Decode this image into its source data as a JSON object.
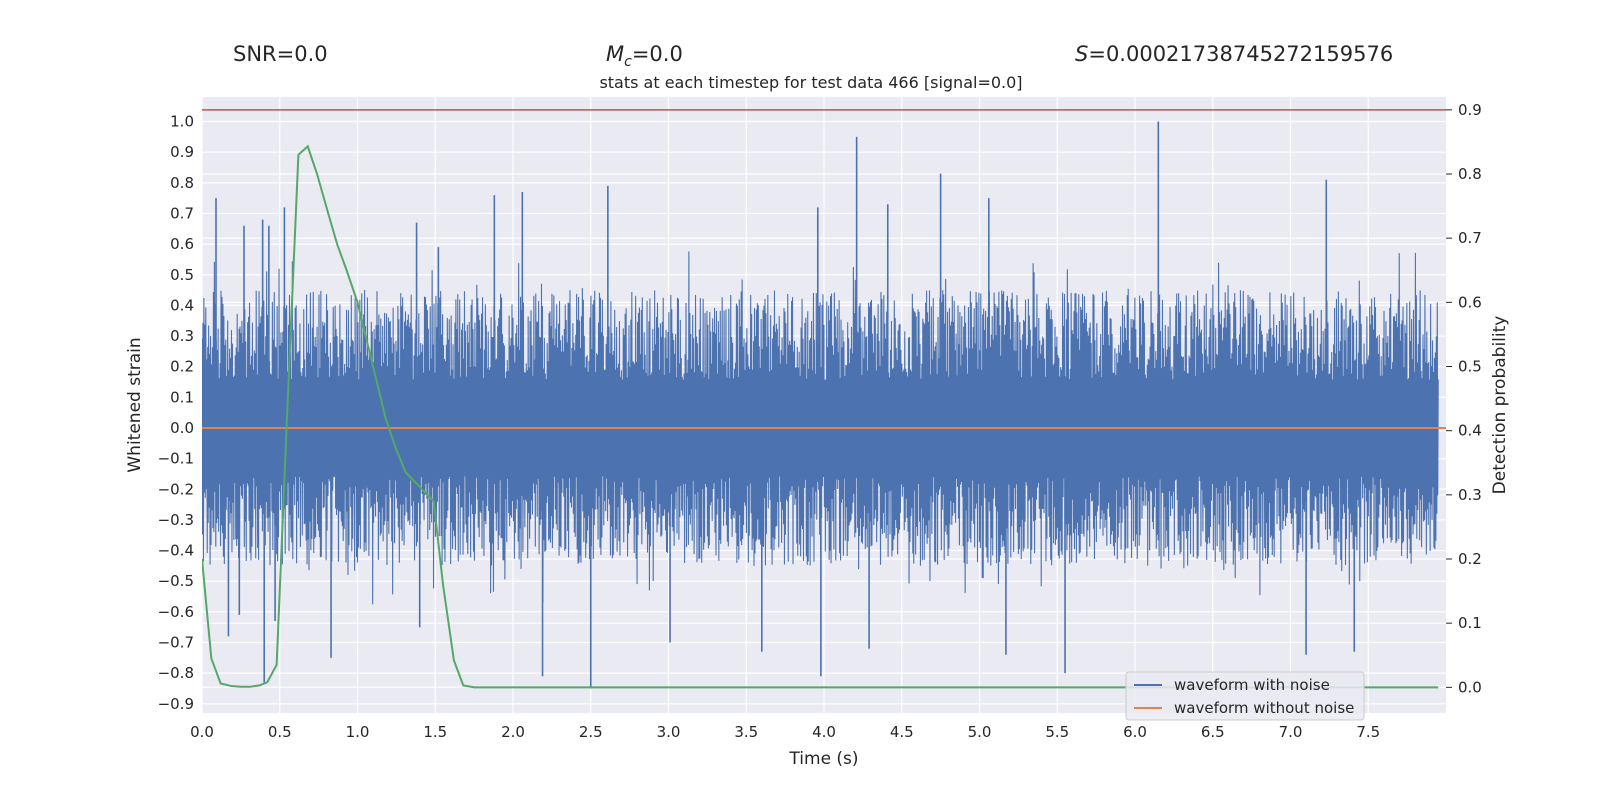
{
  "header": {
    "snr": "SNR=0.0",
    "mc_symbol": "M",
    "mc_subscript": "c",
    "mc_value": "=0.0",
    "s_symbol": "S",
    "s_value": "=0.00021738745272159576"
  },
  "chart_data": {
    "type": "line",
    "title": "stats at each timestep for test data 466 [signal=0.0]",
    "xlabel": "Time (s)",
    "ylabel": "Whitened strain",
    "y2label": "Detection probability",
    "xlim": [
      0.0,
      8.0
    ],
    "ylim": [
      -0.93,
      1.08
    ],
    "y2lim": [
      -0.04,
      0.92
    ],
    "x_ticks": [
      "0.0",
      "0.5",
      "1.0",
      "1.5",
      "2.0",
      "2.5",
      "3.0",
      "3.5",
      "4.0",
      "4.5",
      "5.0",
      "5.5",
      "6.0",
      "6.5",
      "7.0",
      "7.5"
    ],
    "y_ticks": [
      "1.0",
      "0.9",
      "0.8",
      "0.7",
      "0.6",
      "0.5",
      "0.4",
      "0.3",
      "0.2",
      "0.1",
      "0.0",
      "−0.1",
      "−0.2",
      "−0.3",
      "−0.4",
      "−0.5",
      "−0.6",
      "−0.7",
      "−0.8",
      "−0.9"
    ],
    "y2_ticks": [
      "0.9",
      "0.8",
      "0.7",
      "0.6",
      "0.5",
      "0.4",
      "0.3",
      "0.2",
      "0.1",
      "0.0"
    ],
    "grid": true,
    "legend_position": "lower-right",
    "background": "#eaeaf2",
    "series": [
      {
        "name": "waveform with noise",
        "color": "#4c72b0",
        "axis": "left",
        "kind": "noise",
        "typical_range": [
          -0.45,
          0.45
        ],
        "peaks": [
          {
            "x": 0.09,
            "y": 0.75
          },
          {
            "x": 0.27,
            "y": 0.66
          },
          {
            "x": 0.39,
            "y": 0.68
          },
          {
            "x": 0.43,
            "y": 0.66
          },
          {
            "x": 0.53,
            "y": 0.72
          },
          {
            "x": 1.38,
            "y": 0.67
          },
          {
            "x": 1.52,
            "y": 0.59
          },
          {
            "x": 1.88,
            "y": 0.76
          },
          {
            "x": 2.06,
            "y": 0.77
          },
          {
            "x": 2.61,
            "y": 0.79
          },
          {
            "x": 3.96,
            "y": 0.72
          },
          {
            "x": 4.21,
            "y": 0.95
          },
          {
            "x": 4.41,
            "y": 0.73
          },
          {
            "x": 4.75,
            "y": 0.83
          },
          {
            "x": 5.06,
            "y": 0.75
          },
          {
            "x": 6.15,
            "y": 1.0
          },
          {
            "x": 7.23,
            "y": 0.81
          },
          {
            "x": 0.17,
            "y": -0.68
          },
          {
            "x": 0.24,
            "y": -0.61
          },
          {
            "x": 0.4,
            "y": -0.83
          },
          {
            "x": 0.47,
            "y": -0.63
          },
          {
            "x": 0.83,
            "y": -0.75
          },
          {
            "x": 1.4,
            "y": -0.65
          },
          {
            "x": 2.19,
            "y": -0.81
          },
          {
            "x": 2.5,
            "y": -0.85
          },
          {
            "x": 3.01,
            "y": -0.7
          },
          {
            "x": 3.6,
            "y": -0.73
          },
          {
            "x": 3.98,
            "y": -0.81
          },
          {
            "x": 4.29,
            "y": -0.72
          },
          {
            "x": 5.17,
            "y": -0.74
          },
          {
            "x": 5.55,
            "y": -0.8
          },
          {
            "x": 7.1,
            "y": -0.74
          },
          {
            "x": 7.41,
            "y": -0.73
          }
        ]
      },
      {
        "name": "waveform without noise",
        "color": "#dd8452",
        "axis": "left",
        "x": [
          0.0,
          8.0
        ],
        "y": [
          0.0,
          0.0
        ]
      },
      {
        "name": "",
        "color": "#55a868",
        "axis": "right",
        "x": [
          0.0,
          0.06,
          0.12,
          0.19,
          0.25,
          0.31,
          0.37,
          0.42,
          0.48,
          0.55,
          0.62,
          0.68,
          0.74,
          0.81,
          0.87,
          0.93,
          1.0,
          1.06,
          1.12,
          1.18,
          1.25,
          1.31,
          1.37,
          1.43,
          1.49,
          1.55,
          1.62,
          1.68,
          1.75,
          2.0,
          3.0,
          4.0,
          5.0,
          6.0,
          7.0,
          7.95
        ],
        "y": [
          0.2,
          0.045,
          0.006,
          0.002,
          0.001,
          0.001,
          0.003,
          0.008,
          0.035,
          0.44,
          0.83,
          0.843,
          0.8,
          0.74,
          0.69,
          0.65,
          0.6,
          0.54,
          0.48,
          0.42,
          0.37,
          0.335,
          0.32,
          0.305,
          0.29,
          0.16,
          0.042,
          0.003,
          0.0,
          0.0,
          0.0,
          0.0,
          0.0,
          0.0,
          0.0,
          0.0
        ]
      }
    ],
    "reference_lines": [
      {
        "axis": "right",
        "y": 0.9,
        "color": "#c44e52"
      }
    ]
  }
}
